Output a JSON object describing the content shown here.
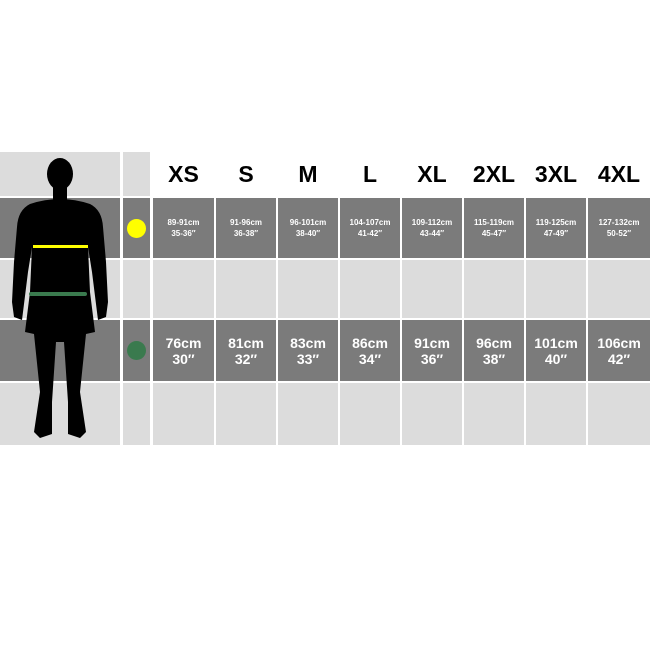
{
  "sizes": [
    "XS",
    "S",
    "M",
    "L",
    "XL",
    "2XL",
    "3XL",
    "4XL"
  ],
  "rows": [
    {
      "name": "chest",
      "marker_color": "#ffff00",
      "values": [
        {
          "cm": "89-91cm",
          "in": "35-36″"
        },
        {
          "cm": "91-96cm",
          "in": "36-38″"
        },
        {
          "cm": "96-101cm",
          "in": "38-40″"
        },
        {
          "cm": "104-107cm",
          "in": "41-42″"
        },
        {
          "cm": "109-112cm",
          "in": "43-44″"
        },
        {
          "cm": "115-119cm",
          "in": "45-47″"
        },
        {
          "cm": "119-125cm",
          "in": "47-49″"
        },
        {
          "cm": "127-132cm",
          "in": "50-52″"
        }
      ]
    },
    {
      "name": "waist",
      "marker_color": "#3a7a4e",
      "values": [
        {
          "cm": "76cm",
          "in": "30″"
        },
        {
          "cm": "81cm",
          "in": "32″"
        },
        {
          "cm": "83cm",
          "in": "33″"
        },
        {
          "cm": "86cm",
          "in": "34″"
        },
        {
          "cm": "91cm",
          "in": "36″"
        },
        {
          "cm": "96cm",
          "in": "38″"
        },
        {
          "cm": "101cm",
          "in": "40″"
        },
        {
          "cm": "106cm",
          "in": "42″"
        }
      ]
    }
  ],
  "colors": {
    "light": "#dcdcdc",
    "dark": "#7b7b7b",
    "figure": "#000000"
  }
}
